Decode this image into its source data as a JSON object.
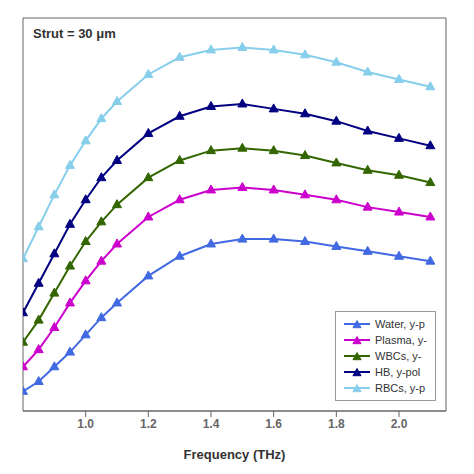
{
  "chart_data": {
    "type": "line",
    "xlabel": "Frequency (THz)",
    "annotation": "Strut = 30 μm",
    "x": [
      0.8,
      0.85,
      0.9,
      0.95,
      1.0,
      1.05,
      1.1,
      1.2,
      1.3,
      1.4,
      1.5,
      1.6,
      1.7,
      1.8,
      1.9,
      2.0,
      2.1
    ],
    "xlim": [
      0.8,
      2.15
    ],
    "xticks": [
      {
        "value": 1.0,
        "label": "1.0"
      },
      1.2,
      1.4,
      1.6,
      1.8,
      {
        "value": 2.0,
        "label": "2.0"
      }
    ],
    "ylim": [
      0,
      1.6
    ],
    "tick_labels": "x",
    "grid": false,
    "legend": "lower right",
    "marker": "triangle",
    "series": [
      {
        "name": "Water, y-p",
        "color": "#4169E1",
        "values": [
          0.08,
          0.12,
          0.18,
          0.24,
          0.31,
          0.38,
          0.44,
          0.55,
          0.63,
          0.68,
          0.7,
          0.7,
          0.69,
          0.67,
          0.65,
          0.63,
          0.61
        ]
      },
      {
        "name": "Plasma, y-",
        "color": "#CC00CC",
        "values": [
          0.18,
          0.25,
          0.34,
          0.44,
          0.53,
          0.61,
          0.68,
          0.79,
          0.86,
          0.9,
          0.91,
          0.9,
          0.88,
          0.86,
          0.83,
          0.81,
          0.79
        ]
      },
      {
        "name": "WBCs, y-",
        "color": "#336600",
        "values": [
          0.28,
          0.37,
          0.48,
          0.59,
          0.69,
          0.77,
          0.84,
          0.95,
          1.02,
          1.06,
          1.07,
          1.06,
          1.04,
          1.01,
          0.98,
          0.96,
          0.93
        ]
      },
      {
        "name": "HB, y-pol",
        "color": "#000080",
        "values": [
          0.4,
          0.52,
          0.64,
          0.76,
          0.86,
          0.95,
          1.02,
          1.13,
          1.2,
          1.24,
          1.25,
          1.23,
          1.21,
          1.18,
          1.14,
          1.11,
          1.08
        ]
      },
      {
        "name": "RBCs, y-p",
        "color": "#87CEEB",
        "values": [
          0.62,
          0.75,
          0.88,
          1.0,
          1.1,
          1.19,
          1.26,
          1.37,
          1.44,
          1.47,
          1.48,
          1.47,
          1.45,
          1.42,
          1.38,
          1.35,
          1.32
        ]
      }
    ]
  }
}
